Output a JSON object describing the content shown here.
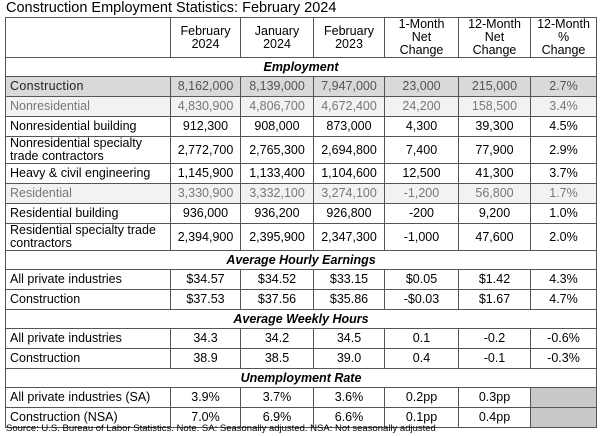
{
  "title": "Construction Employment Statistics: February 2024",
  "columns": [
    [
      "February",
      "2024"
    ],
    [
      "January",
      "2024"
    ],
    [
      "February",
      "2023"
    ],
    [
      "1-Month",
      "Net Change"
    ],
    [
      "12-Month",
      "Net Change"
    ],
    [
      "12-Month",
      "% Change"
    ]
  ],
  "sections": [
    {
      "heading": "Employment",
      "rows": [
        {
          "label": "Construction",
          "style": "total",
          "values": [
            "8,162,000",
            "8,139,000",
            "7,947,000",
            "23,000",
            "215,000",
            "2.7%"
          ]
        },
        {
          "label": "Nonresidential",
          "style": "sub",
          "values": [
            "4,830,900",
            "4,806,700",
            "4,672,400",
            "24,200",
            "158,500",
            "3.4%"
          ]
        },
        {
          "label": "Nonresidential building",
          "style": "single",
          "values": [
            "912,300",
            "908,000",
            "873,000",
            "4,300",
            "39,300",
            "4.5%"
          ]
        },
        {
          "label": "Nonresidential specialty trade contractors",
          "style": "double",
          "values": [
            "2,772,700",
            "2,765,300",
            "2,694,800",
            "7,400",
            "77,900",
            "2.9%"
          ]
        },
        {
          "label": "Heavy & civil engineering",
          "style": "single",
          "values": [
            "1,145,900",
            "1,133,400",
            "1,104,600",
            "12,500",
            "41,300",
            "3.7%"
          ]
        },
        {
          "label": "Residential",
          "style": "sub",
          "values": [
            "3,330,900",
            "3,332,100",
            "3,274,100",
            "-1,200",
            "56,800",
            "1.7%"
          ]
        },
        {
          "label": "Residential building",
          "style": "single",
          "values": [
            "936,000",
            "936,200",
            "926,800",
            "-200",
            "9,200",
            "1.0%"
          ]
        },
        {
          "label": "Residential specialty trade contractors",
          "style": "double",
          "values": [
            "2,394,900",
            "2,395,900",
            "2,347,300",
            "-1,000",
            "47,600",
            "2.0%"
          ]
        }
      ]
    },
    {
      "heading": "Average Hourly Earnings",
      "rows": [
        {
          "label": "All private industries",
          "style": "single",
          "values": [
            "$34.57",
            "$34.52",
            "$33.15",
            "$0.05",
            "$1.42",
            "4.3%"
          ]
        },
        {
          "label": "Construction",
          "style": "single",
          "values": [
            "$37.53",
            "$37.56",
            "$35.86",
            "-$0.03",
            "$1.67",
            "4.7%"
          ]
        }
      ]
    },
    {
      "heading": "Average Weekly Hours",
      "rows": [
        {
          "label": "All private industries",
          "style": "single",
          "values": [
            "34.3",
            "34.2",
            "34.5",
            "0.1",
            "-0.2",
            "-0.6%"
          ]
        },
        {
          "label": "Construction",
          "style": "single",
          "values": [
            "38.9",
            "38.5",
            "39.0",
            "0.4",
            "-0.1",
            "-0.3%"
          ]
        }
      ]
    },
    {
      "heading": "Unemployment Rate",
      "rows": [
        {
          "label": "All private industries (SA)",
          "style": "single",
          "values": [
            "3.9%",
            "3.7%",
            "3.6%",
            "0.2pp",
            "0.3pp",
            ""
          ]
        },
        {
          "label": "Construction (NSA)",
          "style": "single",
          "values": [
            "7.0%",
            "6.9%",
            "6.6%",
            "0.1pp",
            "0.4pp",
            ""
          ]
        }
      ]
    }
  ],
  "source": "Source: U.S. Bureau of Labor Statistics.  Note. SA: Seasonally adjusted.  NSA: Not seasonally adjusted",
  "colors": {
    "total_row_bg": "#d9d9d9",
    "sub_row_bg": "#f2f2f2",
    "blank_cell_bg": "#c9c9c9"
  }
}
